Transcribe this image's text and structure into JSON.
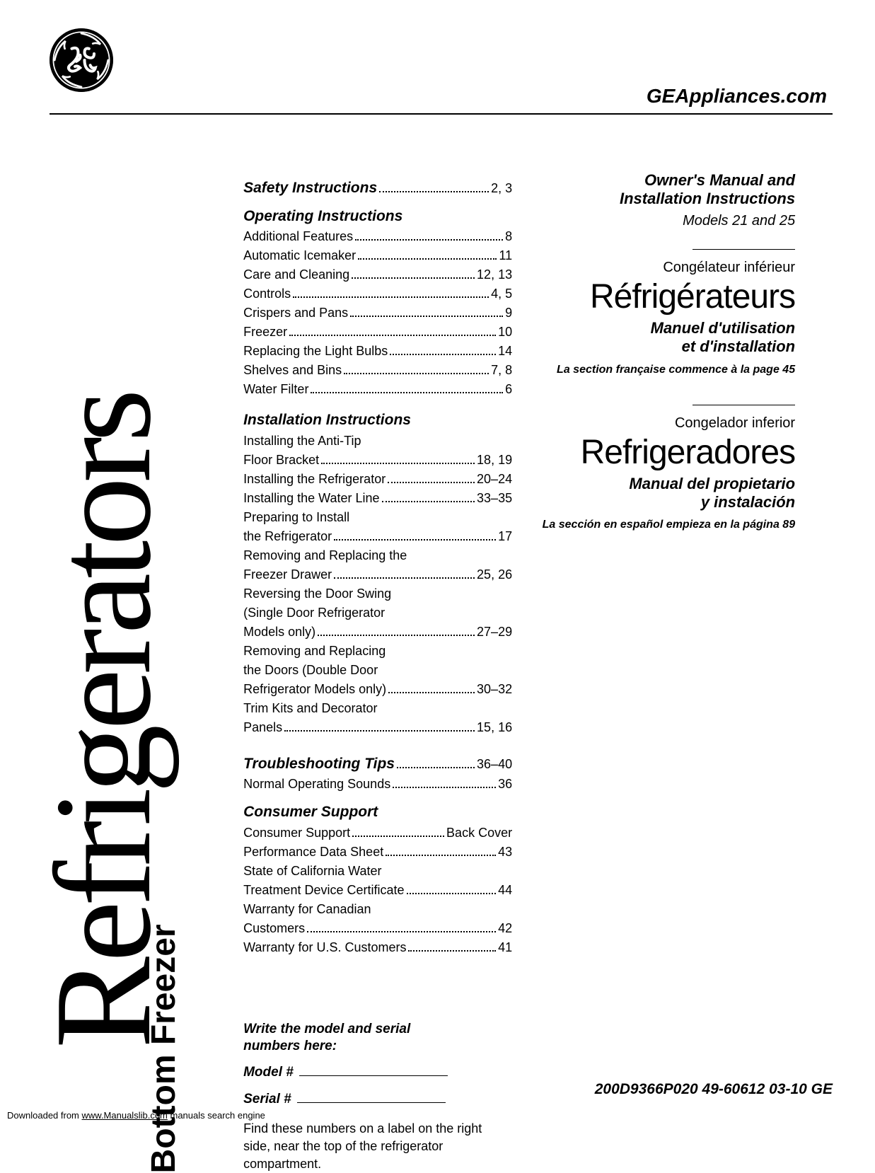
{
  "header": {
    "site_url": "GEAppliances.com"
  },
  "vertical": {
    "main": "Refrigerators",
    "sub": "Bottom Freezer"
  },
  "toc": {
    "safety": {
      "heading": "Safety Instructions",
      "page": "2, 3"
    },
    "operating": {
      "heading": "Operating Instructions",
      "items": [
        {
          "label": "Additional Features",
          "page": "8"
        },
        {
          "label": "Automatic Icemaker",
          "page": "11"
        },
        {
          "label": "Care and Cleaning",
          "page": "12, 13"
        },
        {
          "label": "Controls",
          "page": "4, 5"
        },
        {
          "label": "Crispers and Pans",
          "page": "9"
        },
        {
          "label": "Freezer",
          "page": "10"
        },
        {
          "label": "Replacing the Light Bulbs",
          "page": "14"
        },
        {
          "label": "Shelves and Bins",
          "page": "7, 8"
        },
        {
          "label": "Water Filter",
          "page": "6"
        }
      ]
    },
    "installation": {
      "heading": "Installation Instructions",
      "items": [
        {
          "pre": "Installing the Anti-Tip",
          "label": "Floor Bracket",
          "page": "18, 19"
        },
        {
          "label": "Installing the Refrigerator",
          "page": "20–24"
        },
        {
          "label": "Installing the Water Line",
          "page": "33–35"
        },
        {
          "pre": "Preparing to Install",
          "label": "the Refrigerator",
          "page": "17"
        },
        {
          "pre": "Removing and Replacing the",
          "label": "Freezer Drawer",
          "page": "25, 26"
        },
        {
          "pre": "Reversing the Door Swing",
          "pre2": "(Single Door Refrigerator",
          "label": "Models only)",
          "page": "27–29"
        },
        {
          "pre": "Removing and Replacing",
          "pre2": "the Doors (Double Door",
          "label": "Refrigerator Models only)",
          "page": "30–32"
        },
        {
          "pre": "Trim Kits and Decorator",
          "label": "Panels",
          "page": "15, 16"
        }
      ]
    },
    "troubleshooting": {
      "heading": "Troubleshooting Tips",
      "page": "36–40",
      "items": [
        {
          "label": "Normal Operating Sounds",
          "page": "36"
        }
      ]
    },
    "consumer": {
      "heading": "Consumer Support",
      "items": [
        {
          "label": "Consumer Support",
          "page": "Back Cover"
        },
        {
          "label": "Performance Data Sheet",
          "page": "43"
        },
        {
          "pre": "State of California Water",
          "label": "Treatment Device Certificate",
          "page": "44"
        },
        {
          "pre": "Warranty for Canadian",
          "label": "Customers",
          "page": "42"
        },
        {
          "label": "Warranty for U.S. Customers",
          "page": "41"
        }
      ]
    }
  },
  "right": {
    "owners1": "Owner's Manual and",
    "owners2": "Installation Instructions",
    "models": "Models 21 and 25",
    "fr_small": "Congélateur inférieur",
    "fr_big": "Réfrigérateurs",
    "fr_sub1": "Manuel d'utilisation",
    "fr_sub2": "et d'installation",
    "fr_note": "La section française commence à la page 45",
    "es_small": "Congelador inferior",
    "es_big": "Refrigeradores",
    "es_sub1": "Manual del propietario",
    "es_sub2": "y instalación",
    "es_note": "La sección en español empieza en la página 89"
  },
  "model_entry": {
    "prompt1": "Write the model and serial",
    "prompt2": "numbers here:",
    "model_label": "Model #",
    "serial_label": "Serial #",
    "note": "Find these numbers on a label on the right side, near the top of the refrigerator compartment."
  },
  "footer": {
    "code": "200D9366P020   49-60612   03-10 GE",
    "download_pre": "Downloaded from ",
    "download_link": "www.Manualslib.com",
    "download_post": " manuals search engine"
  }
}
